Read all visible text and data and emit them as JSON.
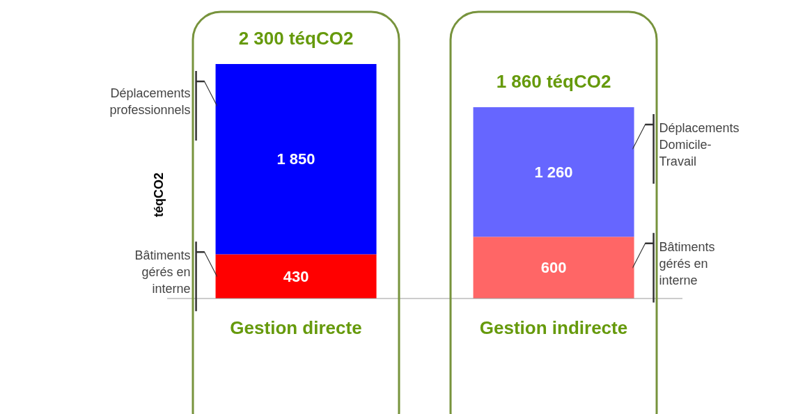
{
  "chart_data": {
    "type": "bar",
    "stacked": true,
    "ylabel": "téqCO2",
    "categories": [
      "Gestion directe",
      "Gestion indirecte"
    ],
    "series": [
      {
        "name": "Bâtiments gérés en interne",
        "color": "#ff0000",
        "values": [
          430,
          null
        ],
        "value_labels": [
          "430",
          null
        ]
      },
      {
        "name": "Bâtiments gérés en interne",
        "color": "#ff6666",
        "values": [
          null,
          600
        ],
        "value_labels": [
          null,
          "600"
        ]
      },
      {
        "name": "Déplacements professionnels",
        "color": "#0000ff",
        "values": [
          1850,
          null
        ],
        "value_labels": [
          "1 850",
          null
        ]
      },
      {
        "name": "Déplacements Domicile-Travail",
        "color": "#6666ff",
        "values": [
          null,
          1260
        ],
        "value_labels": [
          null,
          "1 260"
        ]
      }
    ],
    "totals": [
      "2 300 téqCO2",
      "1 860 téqCO2"
    ]
  }
}
